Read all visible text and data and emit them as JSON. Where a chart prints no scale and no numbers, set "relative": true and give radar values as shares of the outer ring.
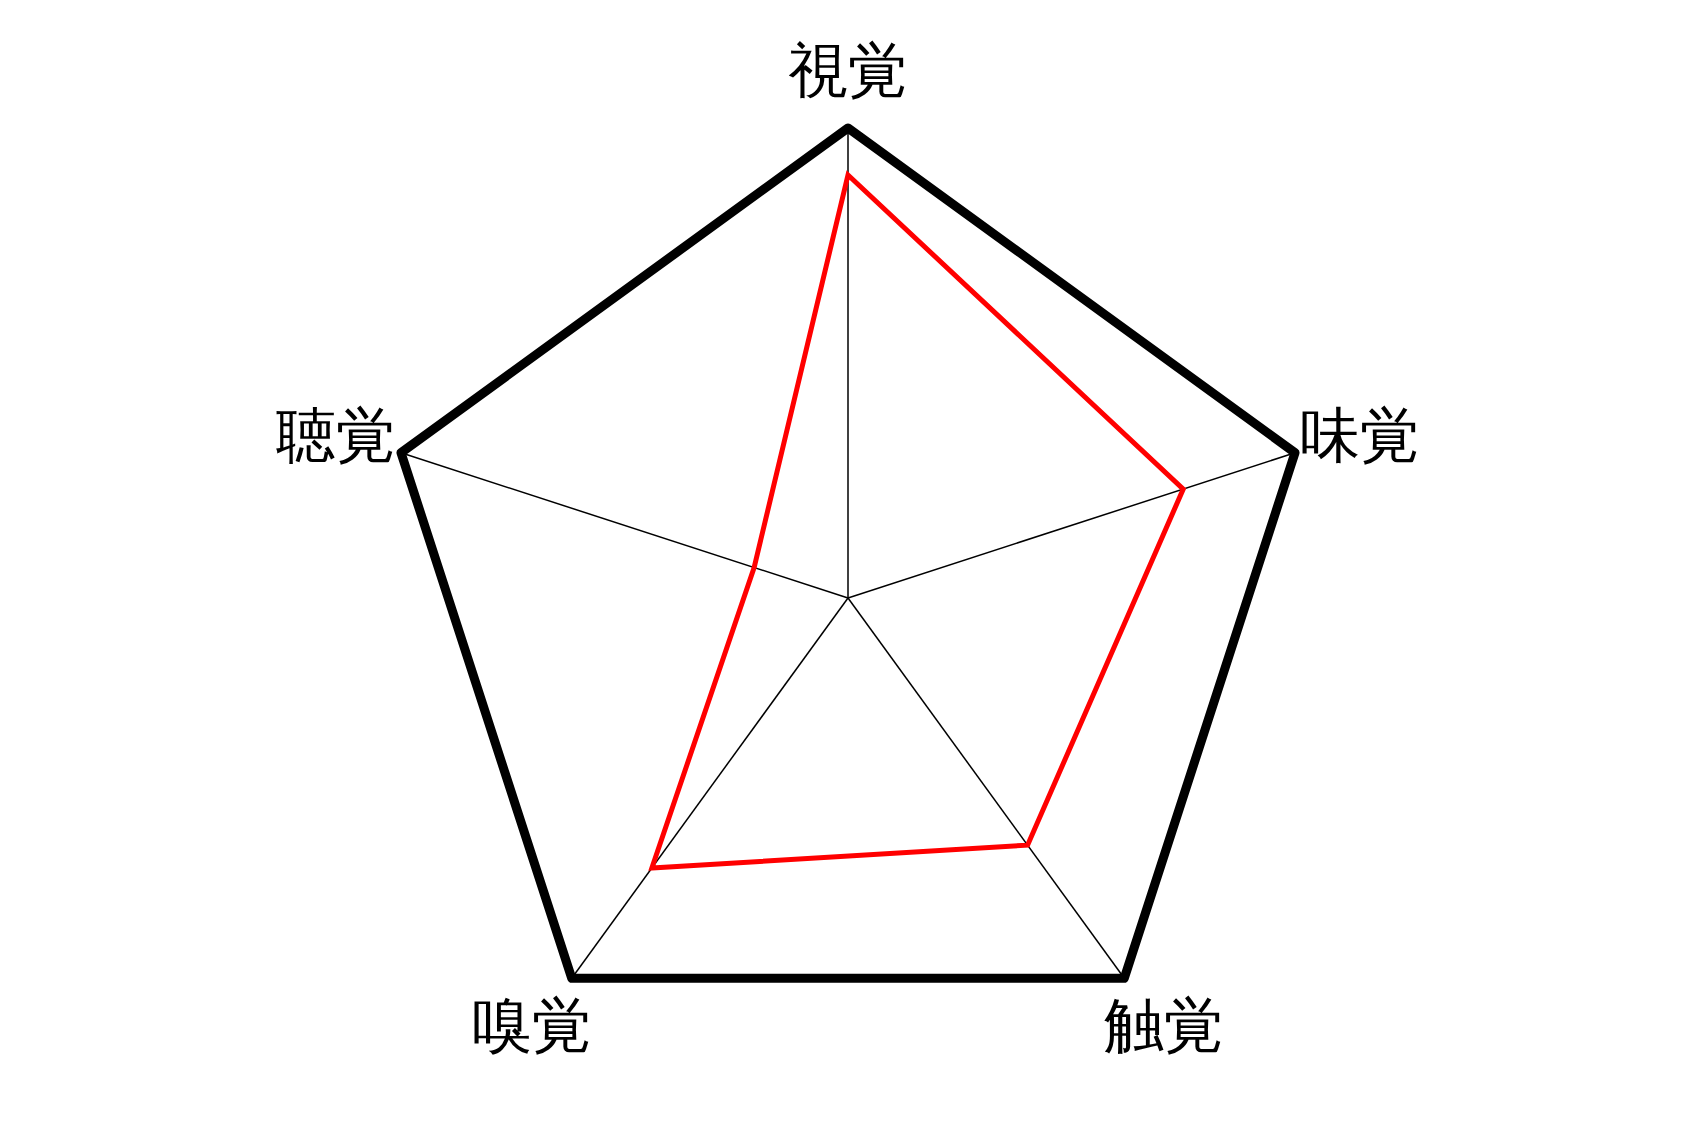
{
  "chart_data": {
    "type": "radar",
    "relative": true,
    "categories": [
      "視覚",
      "味覚",
      "触覚",
      "嗅覚",
      "聴覚"
    ],
    "series": [
      {
        "color": "#ff0000",
        "values": [
          0.9,
          0.75,
          0.65,
          0.71,
          0.21
        ]
      }
    ],
    "grid": true,
    "marker": "none"
  }
}
